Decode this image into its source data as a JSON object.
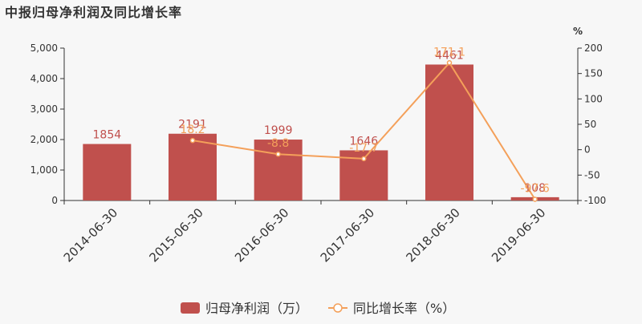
{
  "chart_data": {
    "type": "bar",
    "title": "中报归母净利润及同比增长率",
    "categories": [
      "2014-06-30",
      "2015-06-30",
      "2016-06-30",
      "2017-06-30",
      "2018-06-30",
      "2019-06-30"
    ],
    "series": [
      {
        "name": "归母净利润（万）",
        "type": "bar",
        "axis": "left",
        "values": [
          1854,
          2191,
          1999,
          1646,
          4461,
          108
        ],
        "labels": [
          "1854",
          "2191",
          "1999",
          "1646",
          "4461",
          "108"
        ],
        "color": "#c0504d"
      },
      {
        "name": "同比增长率（%）",
        "type": "line",
        "axis": "right",
        "values": [
          null,
          18.2,
          -8.8,
          -17.7,
          171.1,
          -97.6
        ],
        "labels": [
          "",
          "18.2",
          "-8.8",
          "-17.7",
          "171.1",
          "-97.6"
        ],
        "color": "#f4a05a"
      }
    ],
    "y_left": {
      "range": [
        0,
        5000
      ],
      "ticks": [
        0,
        1000,
        2000,
        3000,
        4000,
        5000
      ],
      "tick_labels": [
        "0",
        "1,000",
        "2,000",
        "3,000",
        "4,000",
        "5,000"
      ]
    },
    "y_right": {
      "label": "%",
      "range": [
        -100,
        200
      ],
      "ticks": [
        -100,
        -50,
        0,
        50,
        100,
        150,
        200
      ],
      "tick_labels": [
        "-100",
        "-50",
        "0",
        "50",
        "100",
        "150",
        "200"
      ]
    },
    "grid": false,
    "legend_position": "bottom-center"
  }
}
